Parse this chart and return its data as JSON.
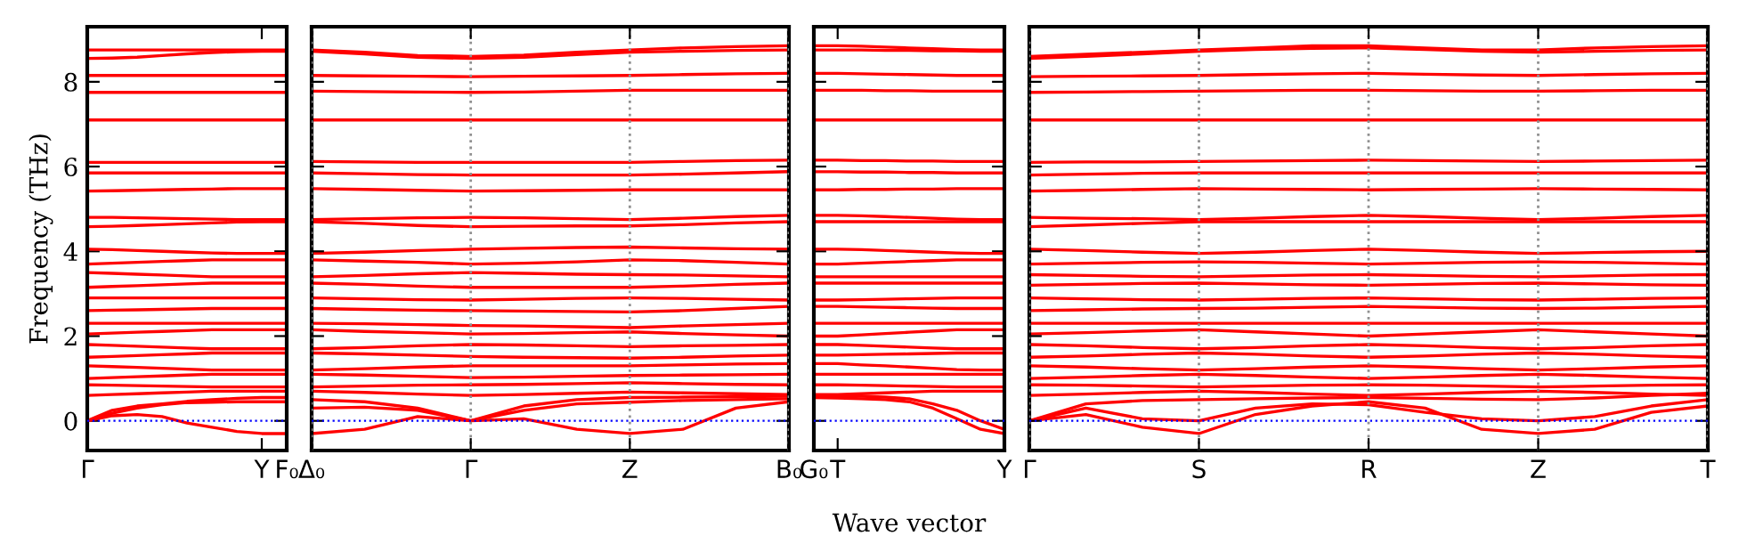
{
  "chart_data": [
    {
      "type": "line",
      "ylabel": "Frequency (THz)",
      "ylim": [
        -0.7,
        9.3
      ],
      "yticks": [
        0,
        2,
        4,
        6,
        8
      ],
      "ref_lines": [
        {
          "axis": "y",
          "value": 0,
          "color": "#0000ff",
          "line_style": "dotted"
        }
      ],
      "categories": [
        "Γ",
        null,
        null,
        null,
        null,
        null,
        null,
        "Y",
        "F₀"
      ],
      "series": [
        {
          "color": "#ff0000",
          "values": [
            8.75,
            8.75,
            8.75,
            8.75,
            8.75,
            8.75,
            8.75,
            8.75,
            8.75
          ]
        },
        {
          "color": "#ff0000",
          "values": [
            8.55,
            8.56,
            8.58,
            8.62,
            8.66,
            8.69,
            8.71,
            8.72,
            8.72
          ]
        },
        {
          "color": "#ff0000",
          "values": [
            8.15,
            8.15,
            8.15,
            8.15,
            8.15,
            8.15,
            8.15,
            8.15,
            8.15
          ]
        },
        {
          "color": "#ff0000",
          "values": [
            7.75,
            7.75,
            7.75,
            7.75,
            7.75,
            7.75,
            7.75,
            7.75,
            7.75
          ]
        },
        {
          "color": "#ff0000",
          "values": [
            7.1,
            7.1,
            7.1,
            7.1,
            7.1,
            7.1,
            7.1,
            7.1,
            7.1
          ]
        },
        {
          "color": "#ff0000",
          "values": [
            6.1,
            6.1,
            6.1,
            6.1,
            6.1,
            6.1,
            6.1,
            6.1,
            6.1
          ]
        },
        {
          "color": "#ff0000",
          "values": [
            5.85,
            5.85,
            5.85,
            5.85,
            5.85,
            5.85,
            5.85,
            5.85,
            5.85
          ]
        },
        {
          "color": "#ff0000",
          "values": [
            5.42,
            5.43,
            5.44,
            5.45,
            5.46,
            5.47,
            5.48,
            5.48,
            5.48
          ]
        },
        {
          "color": "#ff0000",
          "values": [
            4.8,
            4.8,
            4.79,
            4.78,
            4.77,
            4.76,
            4.75,
            4.75,
            4.75
          ]
        },
        {
          "color": "#ff0000",
          "values": [
            4.58,
            4.59,
            4.61,
            4.63,
            4.65,
            4.67,
            4.69,
            4.7,
            4.7
          ]
        },
        {
          "color": "#ff0000",
          "values": [
            4.05,
            4.04,
            4.02,
            4.0,
            3.98,
            3.96,
            3.95,
            3.95,
            3.95
          ]
        },
        {
          "color": "#ff0000",
          "values": [
            3.7,
            3.72,
            3.74,
            3.76,
            3.78,
            3.8,
            3.8,
            3.8,
            3.8
          ]
        },
        {
          "color": "#ff0000",
          "values": [
            3.5,
            3.48,
            3.46,
            3.44,
            3.42,
            3.4,
            3.4,
            3.4,
            3.4
          ]
        },
        {
          "color": "#ff0000",
          "values": [
            3.15,
            3.17,
            3.19,
            3.21,
            3.23,
            3.25,
            3.25,
            3.25,
            3.25
          ]
        },
        {
          "color": "#ff0000",
          "values": [
            2.9,
            2.9,
            2.9,
            2.9,
            2.9,
            2.9,
            2.9,
            2.9,
            2.9
          ]
        },
        {
          "color": "#ff0000",
          "values": [
            2.6,
            2.61,
            2.62,
            2.63,
            2.64,
            2.65,
            2.65,
            2.65,
            2.65
          ]
        },
        {
          "color": "#ff0000",
          "values": [
            2.3,
            2.3,
            2.3,
            2.3,
            2.3,
            2.3,
            2.3,
            2.3,
            2.3
          ]
        },
        {
          "color": "#ff0000",
          "values": [
            2.05,
            2.07,
            2.09,
            2.11,
            2.13,
            2.15,
            2.15,
            2.15,
            2.15
          ]
        },
        {
          "color": "#ff0000",
          "values": [
            1.8,
            1.78,
            1.76,
            1.74,
            1.72,
            1.7,
            1.7,
            1.7,
            1.7
          ]
        },
        {
          "color": "#ff0000",
          "values": [
            1.5,
            1.52,
            1.54,
            1.56,
            1.58,
            1.6,
            1.6,
            1.6,
            1.6
          ]
        },
        {
          "color": "#ff0000",
          "values": [
            1.3,
            1.28,
            1.26,
            1.24,
            1.22,
            1.2,
            1.2,
            1.2,
            1.2
          ]
        },
        {
          "color": "#ff0000",
          "values": [
            1.0,
            1.02,
            1.04,
            1.06,
            1.08,
            1.1,
            1.1,
            1.1,
            1.1
          ]
        },
        {
          "color": "#ff0000",
          "values": [
            0.85,
            0.84,
            0.83,
            0.82,
            0.81,
            0.8,
            0.8,
            0.8,
            0.8
          ]
        },
        {
          "color": "#ff0000",
          "values": [
            0.6,
            0.62,
            0.64,
            0.66,
            0.68,
            0.7,
            0.7,
            0.7,
            0.7
          ]
        },
        {
          "color": "#ff0000",
          "values": [
            0,
            0.12,
            0.15,
            0.1,
            -0.05,
            -0.15,
            -0.25,
            -0.3,
            -0.3
          ]
        },
        {
          "color": "#ff0000",
          "values": [
            0,
            0.18,
            0.3,
            0.38,
            0.43,
            0.44,
            0.45,
            0.45,
            0.45
          ]
        },
        {
          "color": "#ff0000",
          "values": [
            0,
            0.25,
            0.35,
            0.4,
            0.46,
            0.5,
            0.53,
            0.55,
            0.55
          ]
        }
      ]
    },
    {
      "type": "line",
      "ylim": [
        -0.7,
        9.3
      ],
      "yticks": [
        0,
        2,
        4,
        6,
        8
      ],
      "tick_labels": "x",
      "grid": "x",
      "ref_lines": [
        {
          "axis": "y",
          "value": 0,
          "color": "#0000ff",
          "line_style": "dotted"
        }
      ],
      "categories": [
        "Δ₀",
        null,
        null,
        "Γ",
        null,
        null,
        "Z",
        null,
        null,
        "B₀"
      ],
      "series": [
        {
          "color": "#ff0000",
          "values": [
            8.75,
            8.7,
            8.62,
            8.6,
            8.63,
            8.7,
            8.75,
            8.8,
            8.83,
            8.85
          ]
        },
        {
          "color": "#ff0000",
          "values": [
            8.72,
            8.66,
            8.58,
            8.55,
            8.58,
            8.64,
            8.7,
            8.72,
            8.74,
            8.75
          ]
        },
        {
          "color": "#ff0000",
          "values": [
            8.15,
            8.14,
            8.13,
            8.12,
            8.13,
            8.14,
            8.15,
            8.17,
            8.19,
            8.2
          ]
        },
        {
          "color": "#ff0000",
          "values": [
            7.78,
            7.77,
            7.76,
            7.75,
            7.76,
            7.78,
            7.8,
            7.8,
            7.8,
            7.8
          ]
        },
        {
          "color": "#ff0000",
          "values": [
            7.1,
            7.1,
            7.1,
            7.1,
            7.1,
            7.1,
            7.1,
            7.1,
            7.1,
            7.1
          ]
        },
        {
          "color": "#ff0000",
          "values": [
            6.12,
            6.11,
            6.1,
            6.1,
            6.1,
            6.1,
            6.1,
            6.12,
            6.14,
            6.15
          ]
        },
        {
          "color": "#ff0000",
          "values": [
            5.85,
            5.83,
            5.81,
            5.8,
            5.8,
            5.8,
            5.8,
            5.82,
            5.85,
            5.88
          ]
        },
        {
          "color": "#ff0000",
          "values": [
            5.48,
            5.46,
            5.44,
            5.42,
            5.43,
            5.44,
            5.45,
            5.45,
            5.45,
            5.45
          ]
        },
        {
          "color": "#ff0000",
          "values": [
            4.75,
            4.77,
            4.79,
            4.8,
            4.79,
            4.77,
            4.75,
            4.78,
            4.82,
            4.85
          ]
        },
        {
          "color": "#ff0000",
          "values": [
            4.7,
            4.66,
            4.61,
            4.58,
            4.59,
            4.6,
            4.6,
            4.63,
            4.67,
            4.7
          ]
        },
        {
          "color": "#ff0000",
          "values": [
            3.95,
            3.98,
            4.02,
            4.05,
            4.07,
            4.09,
            4.1,
            4.08,
            4.06,
            4.05
          ]
        },
        {
          "color": "#ff0000",
          "values": [
            3.8,
            3.77,
            3.74,
            3.7,
            3.72,
            3.75,
            3.8,
            3.78,
            3.74,
            3.7
          ]
        },
        {
          "color": "#ff0000",
          "values": [
            3.4,
            3.43,
            3.47,
            3.5,
            3.48,
            3.46,
            3.45,
            3.44,
            3.42,
            3.4
          ]
        },
        {
          "color": "#ff0000",
          "values": [
            3.25,
            3.22,
            3.18,
            3.15,
            3.15,
            3.15,
            3.15,
            3.18,
            3.22,
            3.25
          ]
        },
        {
          "color": "#ff0000",
          "values": [
            2.9,
            2.88,
            2.86,
            2.85,
            2.87,
            2.89,
            2.9,
            2.89,
            2.87,
            2.85
          ]
        },
        {
          "color": "#ff0000",
          "values": [
            2.65,
            2.63,
            2.61,
            2.6,
            2.59,
            2.58,
            2.57,
            2.6,
            2.65,
            2.7
          ]
        },
        {
          "color": "#ff0000",
          "values": [
            2.3,
            2.29,
            2.27,
            2.25,
            2.24,
            2.22,
            2.2,
            2.24,
            2.27,
            2.3
          ]
        },
        {
          "color": "#ff0000",
          "values": [
            2.15,
            2.11,
            2.08,
            2.05,
            2.06,
            2.08,
            2.1,
            2.06,
            2.03,
            2.0
          ]
        },
        {
          "color": "#ff0000",
          "values": [
            1.7,
            1.73,
            1.77,
            1.8,
            1.79,
            1.77,
            1.75,
            1.77,
            1.78,
            1.8
          ]
        },
        {
          "color": "#ff0000",
          "values": [
            1.6,
            1.58,
            1.55,
            1.52,
            1.5,
            1.49,
            1.48,
            1.5,
            1.53,
            1.55
          ]
        },
        {
          "color": "#ff0000",
          "values": [
            1.2,
            1.23,
            1.27,
            1.3,
            1.3,
            1.3,
            1.3,
            1.32,
            1.34,
            1.35
          ]
        },
        {
          "color": "#ff0000",
          "values": [
            1.1,
            1.08,
            1.05,
            1.02,
            1.03,
            1.05,
            1.07,
            1.08,
            1.09,
            1.1
          ]
        },
        {
          "color": "#ff0000",
          "values": [
            0.8,
            0.82,
            0.84,
            0.85,
            0.86,
            0.88,
            0.9,
            0.88,
            0.86,
            0.85
          ]
        },
        {
          "color": "#ff0000",
          "values": [
            0.7,
            0.67,
            0.63,
            0.6,
            0.62,
            0.65,
            0.68,
            0.66,
            0.64,
            0.62
          ]
        },
        {
          "color": "#ff0000",
          "values": [
            -0.3,
            -0.2,
            0.1,
            0,
            0.05,
            -0.2,
            -0.3,
            -0.2,
            0.3,
            0.45
          ]
        },
        {
          "color": "#ff0000",
          "values": [
            0.3,
            0.32,
            0.25,
            0,
            0.25,
            0.4,
            0.44,
            0.48,
            0.5,
            0.52
          ]
        },
        {
          "color": "#ff0000",
          "values": [
            0.5,
            0.45,
            0.3,
            0,
            0.35,
            0.5,
            0.55,
            0.56,
            0.57,
            0.58
          ]
        }
      ]
    },
    {
      "type": "line",
      "xlabel": "Wave vector",
      "ylim": [
        -0.7,
        9.3
      ],
      "yticks": [
        0,
        2,
        4,
        6,
        8
      ],
      "tick_labels": "x",
      "ref_lines": [
        {
          "axis": "y",
          "value": 0,
          "color": "#0000ff",
          "line_style": "dotted"
        }
      ],
      "categories": [
        "G₀",
        "T",
        null,
        null,
        null,
        null,
        null,
        null,
        "Y"
      ],
      "series": [
        {
          "color": "#ff0000",
          "values": [
            8.85,
            8.85,
            8.84,
            8.82,
            8.8,
            8.78,
            8.76,
            8.75,
            8.75
          ]
        },
        {
          "color": "#ff0000",
          "values": [
            8.75,
            8.75,
            8.75,
            8.74,
            8.74,
            8.73,
            8.73,
            8.72,
            8.72
          ]
        },
        {
          "color": "#ff0000",
          "values": [
            8.2,
            8.2,
            8.19,
            8.18,
            8.17,
            8.16,
            8.15,
            8.15,
            8.15
          ]
        },
        {
          "color": "#ff0000",
          "values": [
            7.8,
            7.8,
            7.8,
            7.79,
            7.79,
            7.78,
            7.78,
            7.78,
            7.78
          ]
        },
        {
          "color": "#ff0000",
          "values": [
            7.1,
            7.1,
            7.1,
            7.1,
            7.1,
            7.1,
            7.1,
            7.1,
            7.1
          ]
        },
        {
          "color": "#ff0000",
          "values": [
            6.15,
            6.15,
            6.14,
            6.14,
            6.13,
            6.13,
            6.12,
            6.12,
            6.12
          ]
        },
        {
          "color": "#ff0000",
          "values": [
            5.88,
            5.88,
            5.87,
            5.87,
            5.86,
            5.86,
            5.85,
            5.85,
            5.85
          ]
        },
        {
          "color": "#ff0000",
          "values": [
            5.45,
            5.45,
            5.46,
            5.46,
            5.47,
            5.47,
            5.48,
            5.48,
            5.48
          ]
        },
        {
          "color": "#ff0000",
          "values": [
            4.85,
            4.85,
            4.84,
            4.82,
            4.8,
            4.78,
            4.76,
            4.75,
            4.75
          ]
        },
        {
          "color": "#ff0000",
          "values": [
            4.7,
            4.7,
            4.7,
            4.7,
            4.7,
            4.7,
            4.7,
            4.7,
            4.7
          ]
        },
        {
          "color": "#ff0000",
          "values": [
            4.05,
            4.05,
            4.04,
            4.02,
            4.0,
            3.98,
            3.96,
            3.95,
            3.95
          ]
        },
        {
          "color": "#ff0000",
          "values": [
            3.7,
            3.7,
            3.72,
            3.74,
            3.76,
            3.78,
            3.8,
            3.8,
            3.8
          ]
        },
        {
          "color": "#ff0000",
          "values": [
            3.4,
            3.4,
            3.4,
            3.4,
            3.4,
            3.4,
            3.4,
            3.4,
            3.4
          ]
        },
        {
          "color": "#ff0000",
          "values": [
            3.25,
            3.25,
            3.25,
            3.25,
            3.25,
            3.25,
            3.25,
            3.25,
            3.25
          ]
        },
        {
          "color": "#ff0000",
          "values": [
            2.85,
            2.85,
            2.86,
            2.87,
            2.88,
            2.89,
            2.9,
            2.9,
            2.9
          ]
        },
        {
          "color": "#ff0000",
          "values": [
            2.7,
            2.7,
            2.69,
            2.68,
            2.67,
            2.66,
            2.65,
            2.65,
            2.65
          ]
        },
        {
          "color": "#ff0000",
          "values": [
            2.3,
            2.3,
            2.3,
            2.3,
            2.3,
            2.3,
            2.3,
            2.3,
            2.3
          ]
        },
        {
          "color": "#ff0000",
          "values": [
            2.0,
            2.0,
            2.03,
            2.06,
            2.09,
            2.12,
            2.15,
            2.15,
            2.15
          ]
        },
        {
          "color": "#ff0000",
          "values": [
            1.8,
            1.8,
            1.78,
            1.76,
            1.74,
            1.72,
            1.7,
            1.7,
            1.7
          ]
        },
        {
          "color": "#ff0000",
          "values": [
            1.55,
            1.55,
            1.56,
            1.57,
            1.58,
            1.59,
            1.6,
            1.6,
            1.6
          ]
        },
        {
          "color": "#ff0000",
          "values": [
            1.35,
            1.35,
            1.32,
            1.3,
            1.27,
            1.24,
            1.21,
            1.2,
            1.2
          ]
        },
        {
          "color": "#ff0000",
          "values": [
            1.1,
            1.1,
            1.1,
            1.1,
            1.1,
            1.1,
            1.1,
            1.1,
            1.1
          ]
        },
        {
          "color": "#ff0000",
          "values": [
            0.85,
            0.85,
            0.84,
            0.83,
            0.82,
            0.81,
            0.8,
            0.8,
            0.8
          ]
        },
        {
          "color": "#ff0000",
          "values": [
            0.62,
            0.62,
            0.64,
            0.66,
            0.68,
            0.7,
            0.7,
            0.7,
            0.7
          ]
        },
        {
          "color": "#ff0000",
          "values": [
            0.55,
            0.54,
            0.52,
            0.5,
            0.45,
            0.3,
            0.05,
            -0.2,
            -0.3
          ]
        },
        {
          "color": "#ff0000",
          "values": [
            0.6,
            0.59,
            0.58,
            0.56,
            0.52,
            0.4,
            0.25,
            0,
            -0.2
          ]
        }
      ]
    },
    {
      "type": "line",
      "ylim": [
        -0.7,
        9.3
      ],
      "yticks": [
        0,
        2,
        4,
        6,
        8
      ],
      "tick_labels": "x",
      "grid": "x",
      "ref_lines": [
        {
          "axis": "y",
          "value": 0,
          "color": "#0000ff",
          "line_style": "dotted"
        }
      ],
      "categories": [
        "Γ",
        null,
        null,
        "S",
        null,
        null,
        "R",
        null,
        null,
        "Z",
        null,
        null,
        "T"
      ],
      "series": [
        {
          "color": "#ff0000",
          "values": [
            8.6,
            8.65,
            8.7,
            8.75,
            8.8,
            8.85,
            8.85,
            8.8,
            8.75,
            8.75,
            8.8,
            8.83,
            8.85
          ]
        },
        {
          "color": "#ff0000",
          "values": [
            8.55,
            8.6,
            8.66,
            8.72,
            8.76,
            8.79,
            8.8,
            8.76,
            8.72,
            8.7,
            8.72,
            8.74,
            8.75
          ]
        },
        {
          "color": "#ff0000",
          "values": [
            8.12,
            8.13,
            8.14,
            8.15,
            8.17,
            8.19,
            8.2,
            8.18,
            8.16,
            8.15,
            8.17,
            8.19,
            8.2
          ]
        },
        {
          "color": "#ff0000",
          "values": [
            7.75,
            7.76,
            7.77,
            7.78,
            7.79,
            7.8,
            7.8,
            7.79,
            7.78,
            7.78,
            7.79,
            7.8,
            7.8
          ]
        },
        {
          "color": "#ff0000",
          "values": [
            7.1,
            7.1,
            7.1,
            7.1,
            7.1,
            7.1,
            7.1,
            7.1,
            7.1,
            7.1,
            7.1,
            7.1,
            7.1
          ]
        },
        {
          "color": "#ff0000",
          "values": [
            6.1,
            6.11,
            6.11,
            6.12,
            6.13,
            6.14,
            6.15,
            6.14,
            6.13,
            6.12,
            6.13,
            6.14,
            6.15
          ]
        },
        {
          "color": "#ff0000",
          "values": [
            5.8,
            5.82,
            5.84,
            5.85,
            5.85,
            5.85,
            5.85,
            5.85,
            5.85,
            5.85,
            5.85,
            5.85,
            5.85
          ]
        },
        {
          "color": "#ff0000",
          "values": [
            5.42,
            5.44,
            5.46,
            5.48,
            5.47,
            5.46,
            5.45,
            5.46,
            5.47,
            5.48,
            5.47,
            5.46,
            5.45
          ]
        },
        {
          "color": "#ff0000",
          "values": [
            4.8,
            4.78,
            4.77,
            4.75,
            4.78,
            4.82,
            4.85,
            4.82,
            4.78,
            4.75,
            4.78,
            4.82,
            4.85
          ]
        },
        {
          "color": "#ff0000",
          "values": [
            4.58,
            4.62,
            4.66,
            4.7,
            4.7,
            4.7,
            4.7,
            4.7,
            4.7,
            4.7,
            4.7,
            4.7,
            4.7
          ]
        },
        {
          "color": "#ff0000",
          "values": [
            4.05,
            4.02,
            3.98,
            3.95,
            3.98,
            4.02,
            4.05,
            4.02,
            3.98,
            3.95,
            3.97,
            3.99,
            4.0
          ]
        },
        {
          "color": "#ff0000",
          "values": [
            3.7,
            3.72,
            3.74,
            3.75,
            3.74,
            3.72,
            3.7,
            3.72,
            3.74,
            3.75,
            3.74,
            3.72,
            3.7
          ]
        },
        {
          "color": "#ff0000",
          "values": [
            3.45,
            3.43,
            3.41,
            3.4,
            3.42,
            3.44,
            3.45,
            3.43,
            3.41,
            3.4,
            3.42,
            3.44,
            3.45
          ]
        },
        {
          "color": "#ff0000",
          "values": [
            3.2,
            3.22,
            3.24,
            3.25,
            3.23,
            3.21,
            3.2,
            3.22,
            3.24,
            3.25,
            3.23,
            3.21,
            3.2
          ]
        },
        {
          "color": "#ff0000",
          "values": [
            2.9,
            2.88,
            2.86,
            2.85,
            2.87,
            2.89,
            2.9,
            2.88,
            2.86,
            2.85,
            2.87,
            2.89,
            2.9
          ]
        },
        {
          "color": "#ff0000",
          "values": [
            2.6,
            2.62,
            2.64,
            2.65,
            2.66,
            2.68,
            2.7,
            2.68,
            2.66,
            2.65,
            2.66,
            2.68,
            2.7
          ]
        },
        {
          "color": "#ff0000",
          "values": [
            2.3,
            2.3,
            2.3,
            2.3,
            2.3,
            2.3,
            2.3,
            2.3,
            2.3,
            2.3,
            2.3,
            2.3,
            2.3
          ]
        },
        {
          "color": "#ff0000",
          "values": [
            2.05,
            2.08,
            2.12,
            2.15,
            2.1,
            2.05,
            2.0,
            2.05,
            2.1,
            2.15,
            2.1,
            2.05,
            2.0
          ]
        },
        {
          "color": "#ff0000",
          "values": [
            1.8,
            1.77,
            1.73,
            1.7,
            1.73,
            1.77,
            1.8,
            1.77,
            1.73,
            1.7,
            1.73,
            1.77,
            1.8
          ]
        },
        {
          "color": "#ff0000",
          "values": [
            1.5,
            1.53,
            1.57,
            1.6,
            1.57,
            1.53,
            1.5,
            1.53,
            1.57,
            1.6,
            1.57,
            1.53,
            1.5
          ]
        },
        {
          "color": "#ff0000",
          "values": [
            1.3,
            1.27,
            1.23,
            1.2,
            1.23,
            1.27,
            1.3,
            1.27,
            1.23,
            1.2,
            1.23,
            1.27,
            1.3
          ]
        },
        {
          "color": "#ff0000",
          "values": [
            1.0,
            1.03,
            1.07,
            1.1,
            1.07,
            1.03,
            1.0,
            1.03,
            1.07,
            1.1,
            1.07,
            1.03,
            1.0
          ]
        },
        {
          "color": "#ff0000",
          "values": [
            0.85,
            0.84,
            0.82,
            0.8,
            0.82,
            0.84,
            0.85,
            0.84,
            0.82,
            0.8,
            0.82,
            0.84,
            0.85
          ]
        },
        {
          "color": "#ff0000",
          "values": [
            0.6,
            0.63,
            0.67,
            0.7,
            0.67,
            0.63,
            0.6,
            0.63,
            0.67,
            0.7,
            0.67,
            0.63,
            0.6
          ]
        },
        {
          "color": "#ff0000",
          "values": [
            0,
            0.15,
            -0.15,
            -0.3,
            0.15,
            0.35,
            0.45,
            0.3,
            -0.2,
            -0.3,
            -0.2,
            0.2,
            0.35
          ]
        },
        {
          "color": "#ff0000",
          "values": [
            0,
            0.3,
            0.05,
            0,
            0.3,
            0.4,
            0.38,
            0.2,
            0.05,
            0,
            0.1,
            0.35,
            0.5
          ]
        },
        {
          "color": "#ff0000",
          "values": [
            0,
            0.4,
            0.48,
            0.5,
            0.52,
            0.54,
            0.55,
            0.53,
            0.51,
            0.5,
            0.54,
            0.6,
            0.65
          ]
        }
      ]
    }
  ]
}
